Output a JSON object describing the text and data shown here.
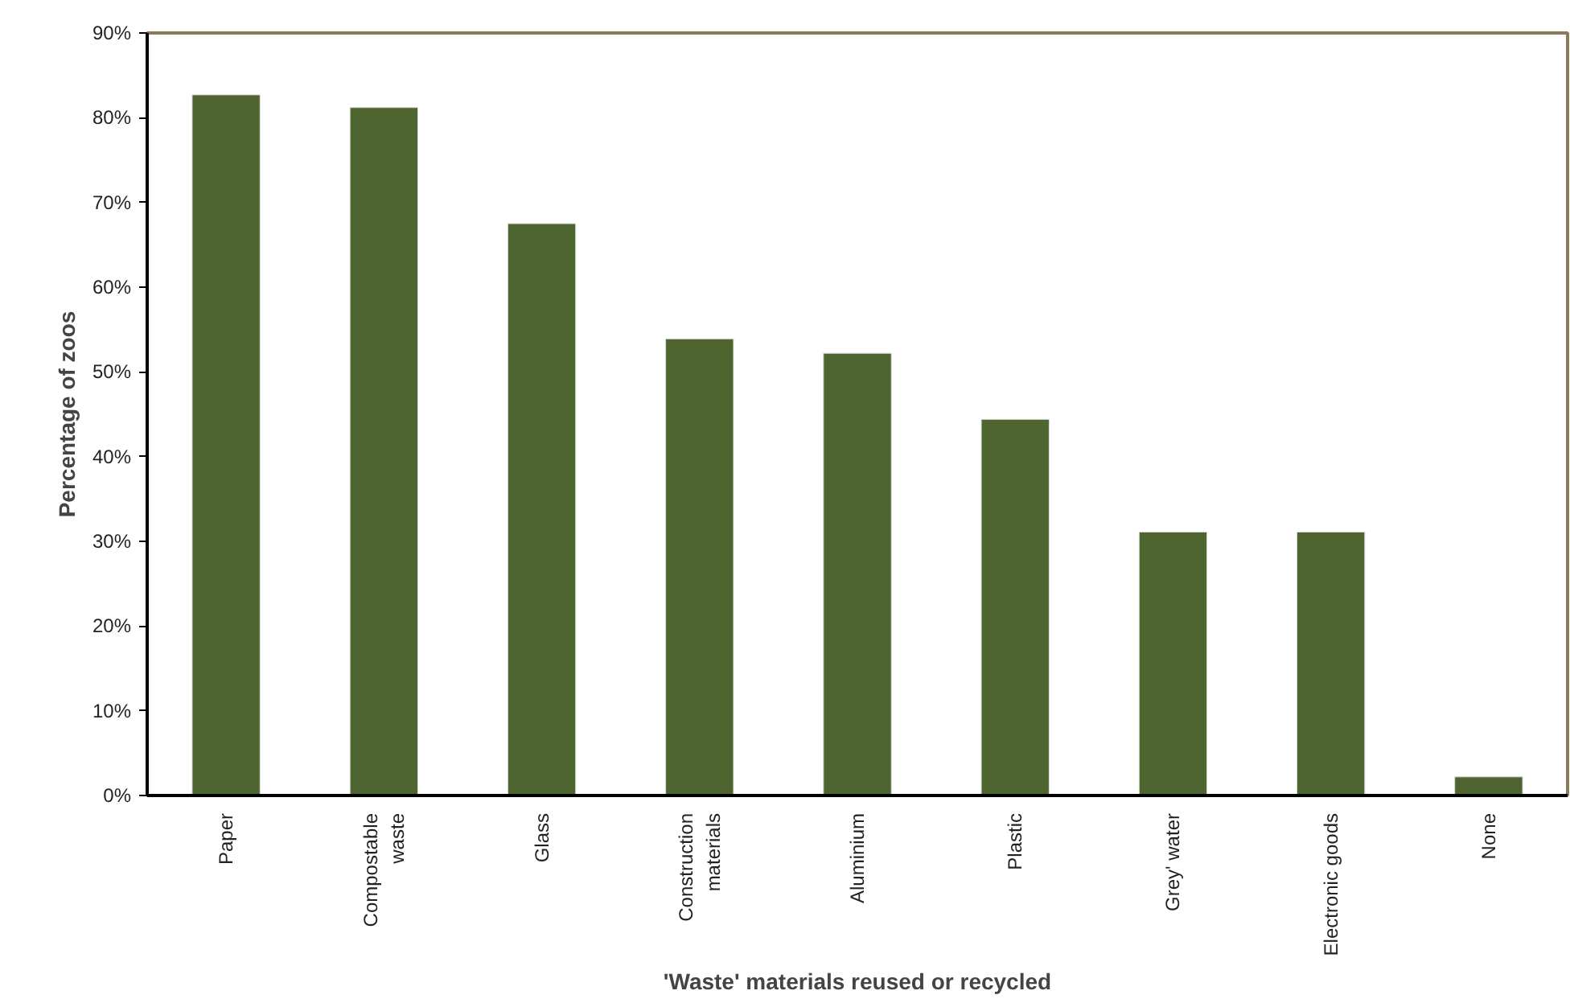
{
  "chart_data": {
    "type": "bar",
    "xlabel": "'Waste' materials reused or recycled",
    "ylabel": "Percentage of zoos",
    "categories": [
      "Paper",
      "Compostable\nwaste",
      "Glass",
      "Construction\nmaterials",
      "Aluminium",
      "Plastic",
      "Grey' water",
      "Electronic goods",
      "None"
    ],
    "values": [
      82.7,
      81.2,
      67.5,
      53.9,
      52.2,
      44.4,
      31.1,
      31.1,
      2.2
    ],
    "color": "#4f6530",
    "ylim": [
      0,
      90
    ],
    "yticks": [
      {
        "value": 0,
        "label": "0%"
      },
      {
        "value": 10,
        "label": "10%"
      },
      {
        "value": 20,
        "label": "20%"
      },
      {
        "value": 30,
        "label": "30%"
      },
      {
        "value": 40,
        "label": "40%"
      },
      {
        "value": 50,
        "label": "50%"
      },
      {
        "value": 60,
        "label": "60%"
      },
      {
        "value": 70,
        "label": "70%"
      },
      {
        "value": 80,
        "label": "80%"
      },
      {
        "value": 90,
        "label": "90%"
      }
    ],
    "grid": false
  }
}
